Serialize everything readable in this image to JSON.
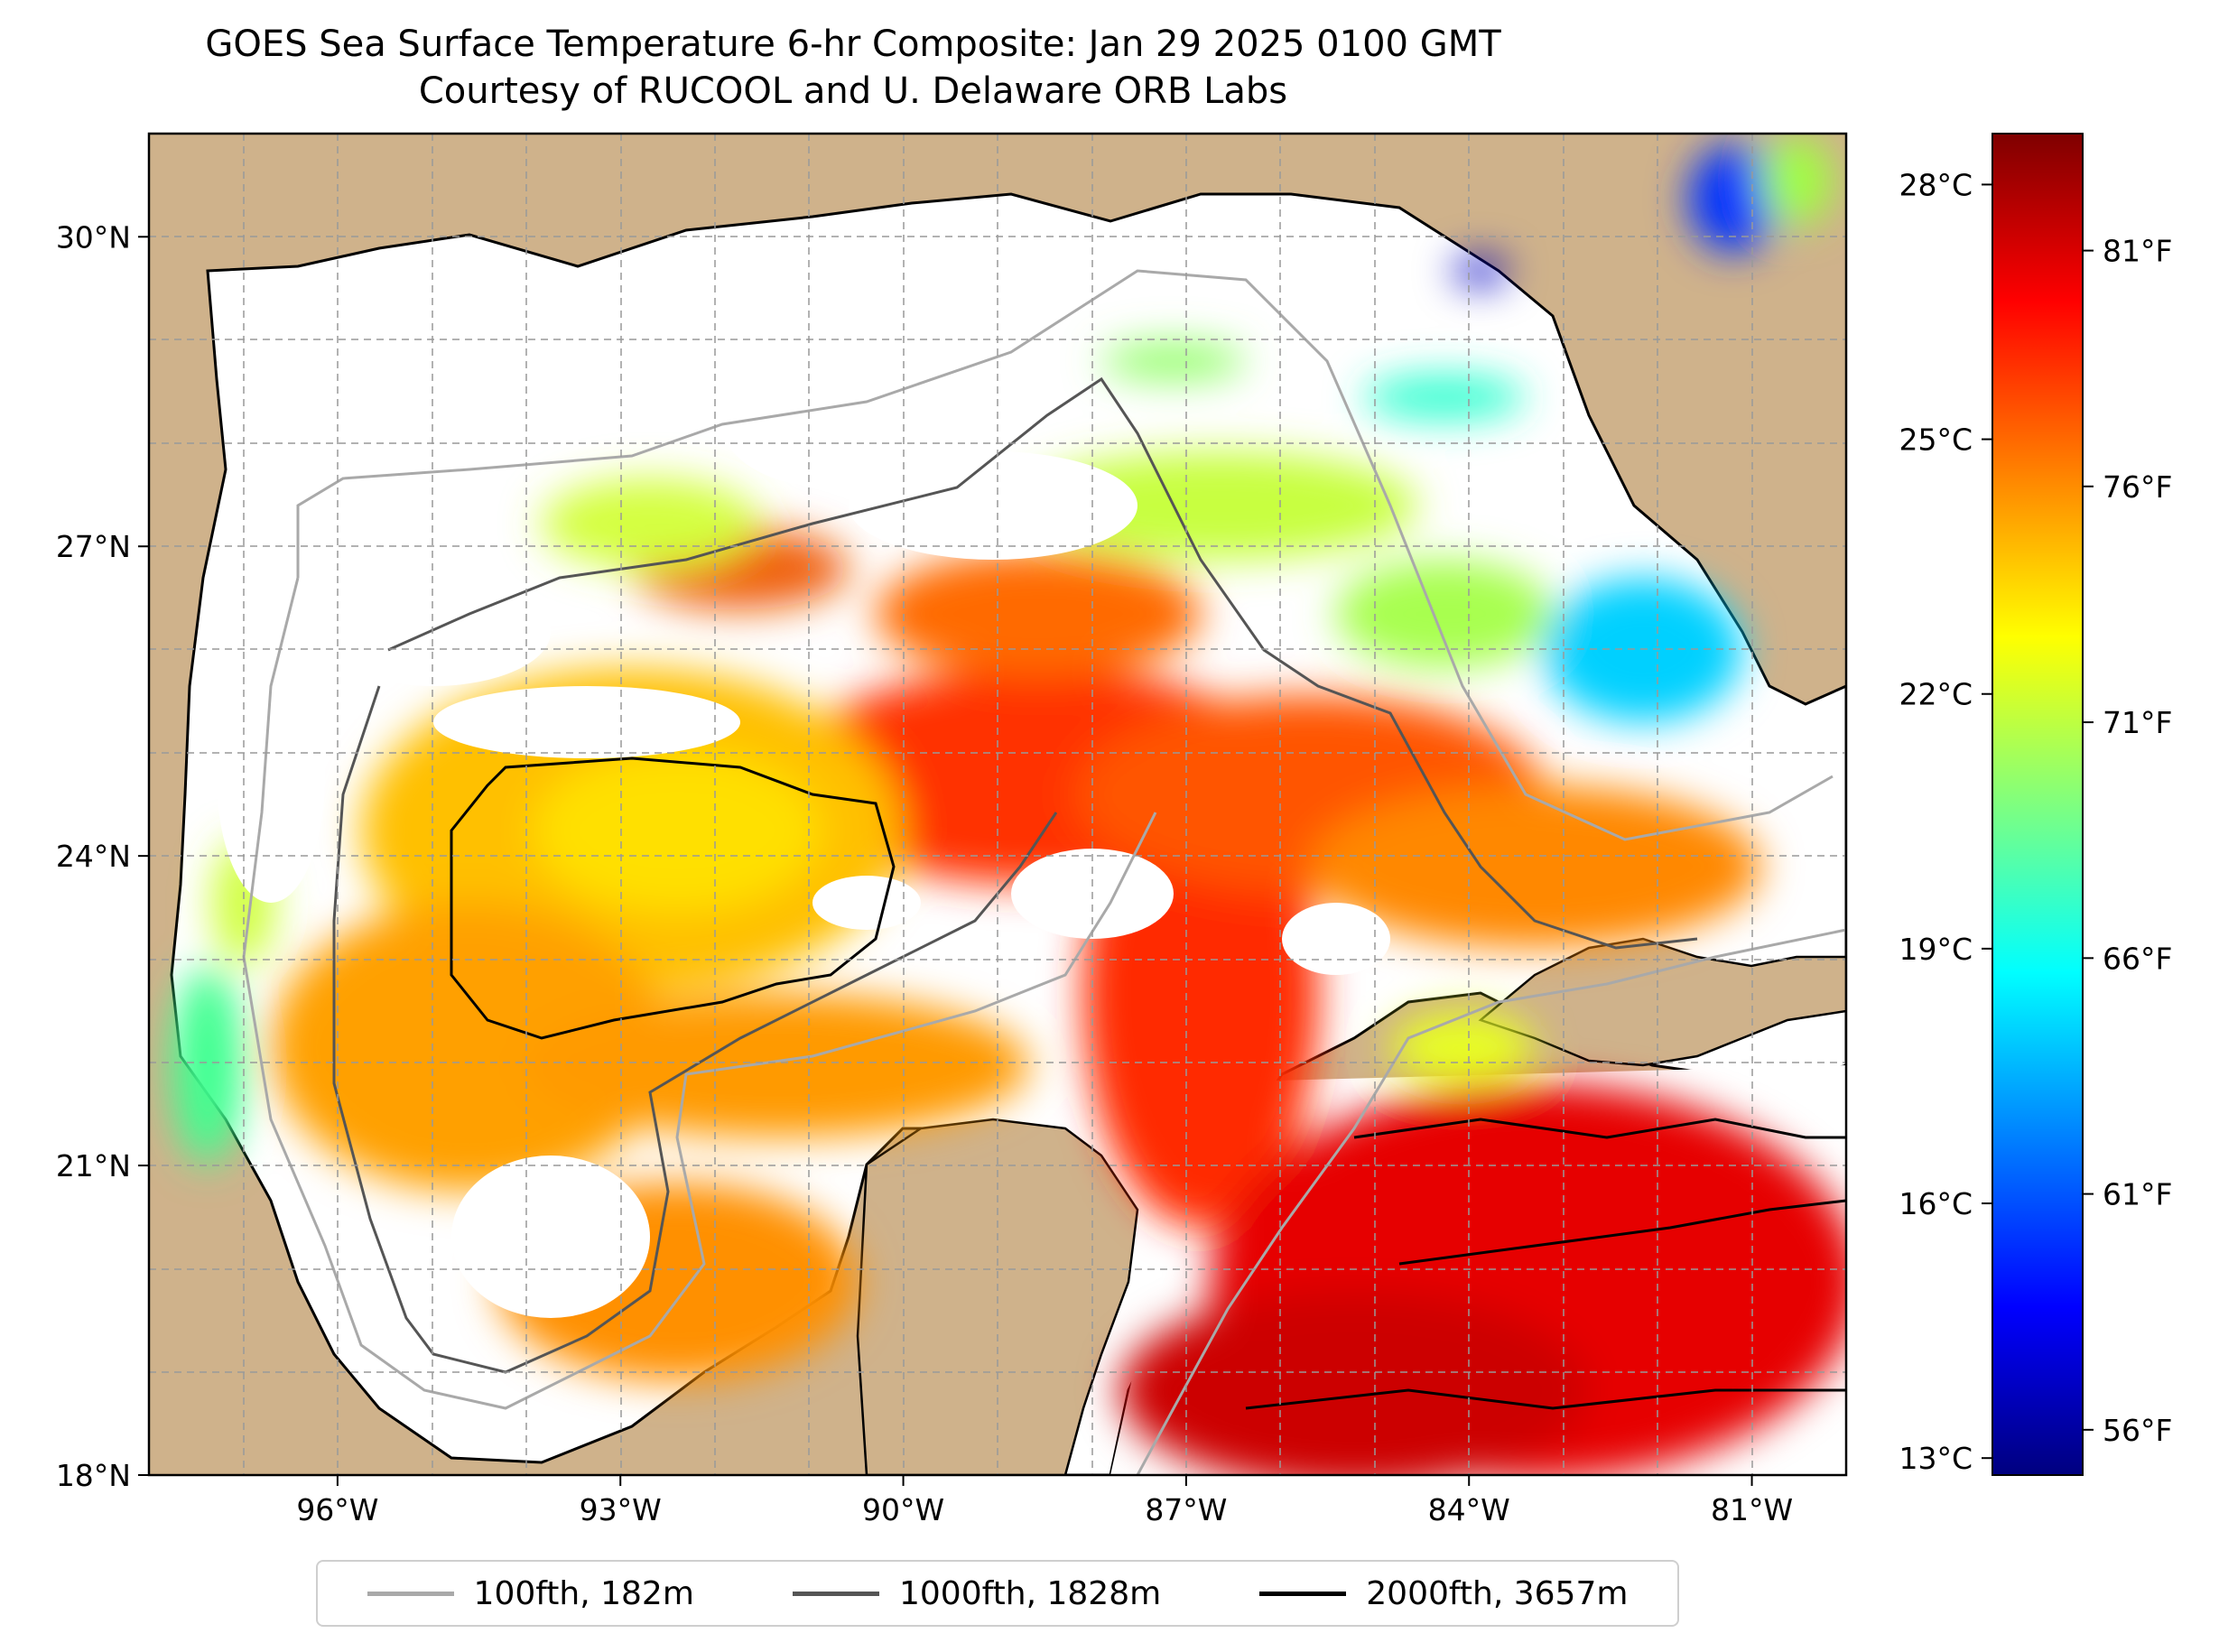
{
  "title": {
    "line1": "GOES Sea Surface Temperature 6-hr Composite: Jan 29 2025 0100 GMT",
    "line2": "Courtesy of RUCOOL and U. Delaware ORB Labs"
  },
  "map": {
    "lon_range": [
      -98,
      -80
    ],
    "lat_range": [
      18,
      31
    ],
    "lon_ticks": [
      {
        "lon": -96,
        "label": "96°W"
      },
      {
        "lon": -93,
        "label": "93°W"
      },
      {
        "lon": -90,
        "label": "90°W"
      },
      {
        "lon": -87,
        "label": "87°W"
      },
      {
        "lon": -84,
        "label": "84°W"
      },
      {
        "lon": -81,
        "label": "81°W"
      }
    ],
    "lat_ticks": [
      {
        "lat": 30,
        "label": "30°N"
      },
      {
        "lat": 27,
        "label": "27°N"
      },
      {
        "lat": 24,
        "label": "24°N"
      },
      {
        "lat": 21,
        "label": "21°N"
      },
      {
        "lat": 18,
        "label": "18°N"
      }
    ],
    "land_color": "#cfb28b",
    "no_data_color": "#ffffff",
    "gridlines": "dashed"
  },
  "colorbar": {
    "celsius_ticks": [
      {
        "value": 28,
        "label": "28°C"
      },
      {
        "value": 25,
        "label": "25°C"
      },
      {
        "value": 22,
        "label": "22°C"
      },
      {
        "value": 19,
        "label": "19°C"
      },
      {
        "value": 16,
        "label": "16°C"
      },
      {
        "value": 13,
        "label": "13°C"
      }
    ],
    "fahrenheit_ticks": [
      {
        "value": 81,
        "label": "81°F"
      },
      {
        "value": 76,
        "label": "76°F"
      },
      {
        "value": 71,
        "label": "71°F"
      },
      {
        "value": 66,
        "label": "66°F"
      },
      {
        "value": 61,
        "label": "61°F"
      },
      {
        "value": 56,
        "label": "56°F"
      }
    ],
    "range_c": [
      12.8,
      28.6
    ],
    "colormap": [
      "#00007f",
      "#0000ff",
      "#007fff",
      "#00ffff",
      "#7fff7f",
      "#ffff00",
      "#ff7f00",
      "#ff0000",
      "#7f0000"
    ]
  },
  "legend": {
    "items": [
      {
        "label": "100fth, 182m",
        "color": "#a9a9a9"
      },
      {
        "label": "1000fth, 1828m",
        "color": "#555555"
      },
      {
        "label": "2000fth, 3657m",
        "color": "#000000"
      }
    ]
  }
}
